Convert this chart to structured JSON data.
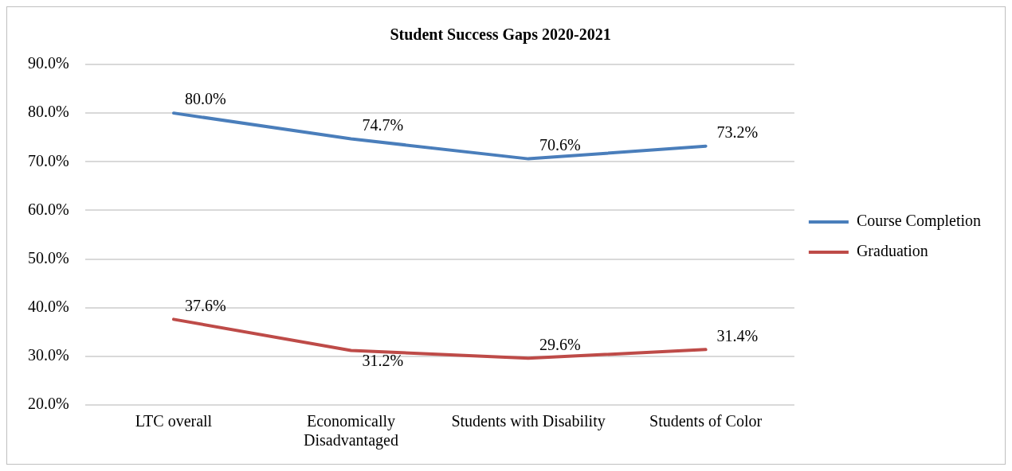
{
  "chart_data": {
    "type": "line",
    "title": "Student Success Gaps 2020-2021",
    "categories": [
      "LTC overall",
      "Economically Disadvantaged",
      "Students with Disability",
      "Students of Color"
    ],
    "series": [
      {
        "name": "Course Completion",
        "color": "#4a7ebb",
        "values": [
          80.0,
          74.7,
          70.6,
          73.2
        ],
        "value_labels": [
          "80.0%",
          "74.7%",
          "70.6%",
          "73.2%"
        ]
      },
      {
        "name": "Graduation",
        "color": "#be4b48",
        "values": [
          37.6,
          31.2,
          29.6,
          31.4
        ],
        "value_labels": [
          "37.6%",
          "31.2%",
          "29.6%",
          "31.4%"
        ]
      }
    ],
    "ylim": [
      20,
      90
    ],
    "yticks": [
      {
        "value": 20,
        "label": "20.0%"
      },
      {
        "value": 30,
        "label": "30.0%"
      },
      {
        "value": 40,
        "label": "40.0%"
      },
      {
        "value": 50,
        "label": "50.0%"
      },
      {
        "value": 60,
        "label": "60.0%"
      },
      {
        "value": 70,
        "label": "70.0%"
      },
      {
        "value": 80,
        "label": "80.0%"
      },
      {
        "value": 90,
        "label": "90.0%"
      }
    ],
    "grid": "y",
    "legend": "right",
    "marker": "none",
    "line_style": "solid"
  }
}
